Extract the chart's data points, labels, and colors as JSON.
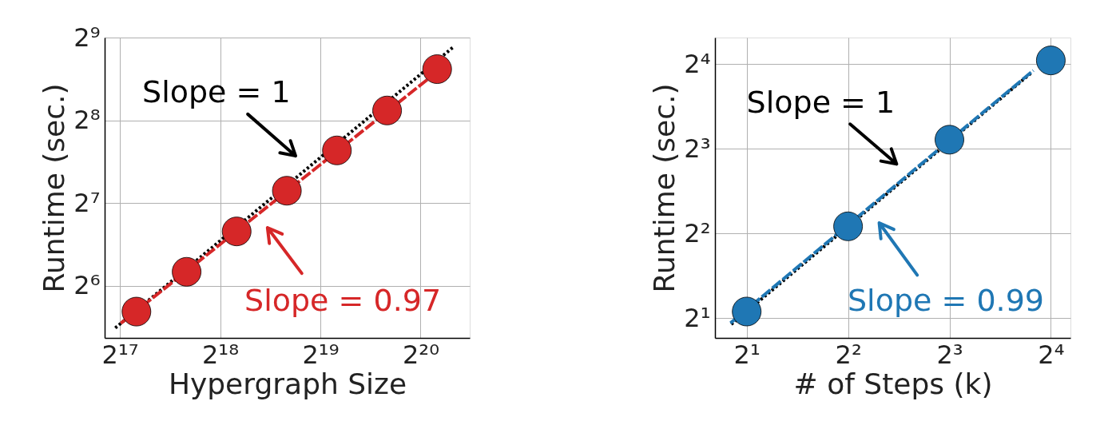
{
  "chart_data": [
    {
      "type": "scatter",
      "xlabel": "Hypergraph Size",
      "ylabel": "Runtime (sec.)",
      "log": "xy",
      "grid": true,
      "xlim": [
        118000,
        1473000
      ],
      "ylim": [
        41.4,
        512
      ],
      "xticks": [
        {
          "value": 131072,
          "label": "2¹⁷"
        },
        {
          "value": 262144,
          "label": "2¹⁸"
        },
        {
          "value": 524288,
          "label": "2¹⁹"
        },
        {
          "value": 1048576,
          "label": "2²⁰"
        }
      ],
      "yticks": [
        {
          "value": 64,
          "label": "2⁶"
        },
        {
          "value": 128,
          "label": "2⁷"
        },
        {
          "value": 256,
          "label": "2⁸"
        },
        {
          "value": 512,
          "label": "2⁹"
        }
      ],
      "x": [
        147000,
        208000,
        294000,
        416000,
        588000,
        832000,
        1176000
      ],
      "series": [
        {
          "color": "#d62728",
          "marker": "circle",
          "values": [
            51.6,
            72,
            101,
            142,
            199,
            278,
            393
          ]
        },
        {
          "type": "line",
          "name": "Slope = 0.97",
          "color": "#d62728",
          "marker": "none",
          "line_style": "dashed",
          "x": [
            132000,
            1130000
          ],
          "values": [
            46.8,
            370
          ]
        },
        {
          "type": "line",
          "name": "Slope = 1",
          "color": "#000000",
          "marker": "none",
          "line_style": "dotted",
          "x": [
            127000,
            1310000
          ],
          "values": [
            45,
            471
          ]
        }
      ]
    },
    {
      "type": "scatter",
      "xlabel": "# of Steps (k)",
      "ylabel": "Runtime (sec.)",
      "log": "xy",
      "grid": true,
      "xlim": [
        1.61,
        18.3
      ],
      "ylim": [
        1.7,
        19.9
      ],
      "xticks": [
        {
          "value": 2,
          "label": "2¹"
        },
        {
          "value": 4,
          "label": "2²"
        },
        {
          "value": 8,
          "label": "2³"
        },
        {
          "value": 16,
          "label": "2⁴"
        }
      ],
      "yticks": [
        {
          "value": 2,
          "label": "2¹"
        },
        {
          "value": 4,
          "label": "2²"
        },
        {
          "value": 8,
          "label": "2³"
        },
        {
          "value": 16,
          "label": "2⁴"
        }
      ],
      "x": [
        2,
        4,
        8,
        16
      ],
      "series": [
        {
          "color": "#1f77b4",
          "marker": "circle",
          "values": [
            2.11,
            4.24,
            8.62,
            16.5
          ]
        },
        {
          "type": "line",
          "name": "Slope = 0.99",
          "color": "#1f77b4",
          "marker": "none",
          "line_style": "dashed",
          "x": [
            1.79,
            14.2
          ],
          "values": [
            1.92,
            15.2
          ]
        },
        {
          "type": "line",
          "name": "Slope = 1",
          "color": "#000000",
          "marker": "none",
          "line_style": "dotted",
          "x": [
            1.8,
            14.0
          ],
          "values": [
            1.9,
            14.9
          ]
        }
      ]
    }
  ]
}
